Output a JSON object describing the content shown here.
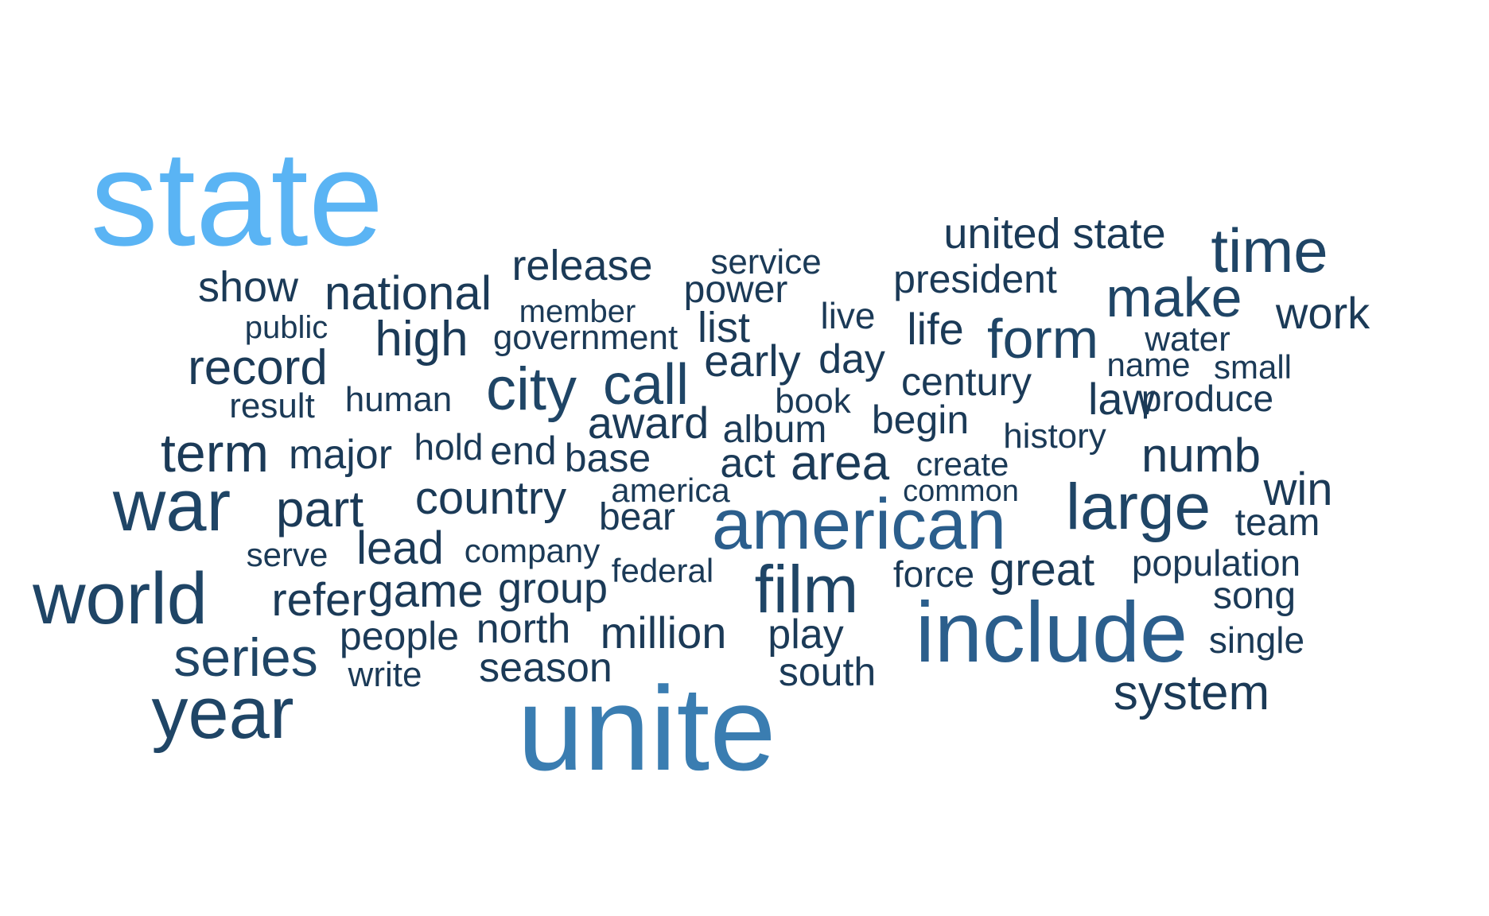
{
  "colors": {
    "tier1": "#5ab4f4",
    "tier2": "#3a7db1",
    "tier3": "#2b5e8c",
    "tier4": "#1f4566",
    "tier5": "#1b3a57"
  },
  "words": [
    {
      "text": "state",
      "color": "tier1"
    },
    {
      "text": "unite",
      "color": "tier2"
    },
    {
      "text": "american",
      "color": "tier3"
    },
    {
      "text": "include",
      "color": "tier3"
    },
    {
      "text": "year",
      "color": "tier4"
    },
    {
      "text": "world",
      "color": "tier4"
    },
    {
      "text": "war",
      "color": "tier4"
    },
    {
      "text": "time",
      "color": "tier4"
    },
    {
      "text": "large",
      "color": "tier4"
    },
    {
      "text": "film",
      "color": "tier4"
    },
    {
      "text": "make",
      "color": "tier4"
    },
    {
      "text": "form",
      "color": "tier4"
    },
    {
      "text": "city",
      "color": "tier4"
    },
    {
      "text": "call",
      "color": "tier4"
    },
    {
      "text": "series",
      "color": "tier4"
    },
    {
      "text": "united state",
      "color": "tier5"
    },
    {
      "text": "term",
      "color": "tier5"
    },
    {
      "text": "part",
      "color": "tier5"
    },
    {
      "text": "country",
      "color": "tier5"
    },
    {
      "text": "national",
      "color": "tier5"
    },
    {
      "text": "record",
      "color": "tier5"
    },
    {
      "text": "high",
      "color": "tier5"
    },
    {
      "text": "area",
      "color": "tier5"
    },
    {
      "text": "numb",
      "color": "tier5"
    },
    {
      "text": "system",
      "color": "tier5"
    },
    {
      "text": "refer",
      "color": "tier5"
    },
    {
      "text": "game",
      "color": "tier5"
    },
    {
      "text": "million",
      "color": "tier5"
    },
    {
      "text": "release",
      "color": "tier5"
    },
    {
      "text": "work",
      "color": "tier5"
    },
    {
      "text": "show",
      "color": "tier5"
    },
    {
      "text": "award",
      "color": "tier5"
    },
    {
      "text": "group",
      "color": "tier5"
    },
    {
      "text": "people",
      "color": "tier5"
    },
    {
      "text": "lead",
      "color": "tier5"
    },
    {
      "text": "early",
      "color": "tier5"
    },
    {
      "text": "day",
      "color": "tier5"
    },
    {
      "text": "great",
      "color": "tier5"
    },
    {
      "text": "win",
      "color": "tier5"
    },
    {
      "text": "major",
      "color": "tier5"
    },
    {
      "text": "north",
      "color": "tier5"
    },
    {
      "text": "season",
      "color": "tier5"
    },
    {
      "text": "president",
      "color": "tier5"
    },
    {
      "text": "century",
      "color": "tier5"
    },
    {
      "text": "begin",
      "color": "tier5"
    },
    {
      "text": "law",
      "color": "tier5"
    },
    {
      "text": "life",
      "color": "tier5"
    },
    {
      "text": "play",
      "color": "tier5"
    },
    {
      "text": "team",
      "color": "tier5"
    },
    {
      "text": "list",
      "color": "tier5"
    },
    {
      "text": "power",
      "color": "tier5"
    },
    {
      "text": "album",
      "color": "tier5"
    },
    {
      "text": "act",
      "color": "tier5"
    },
    {
      "text": "base",
      "color": "tier5"
    },
    {
      "text": "end",
      "color": "tier5"
    },
    {
      "text": "bear",
      "color": "tier5"
    },
    {
      "text": "south",
      "color": "tier5"
    },
    {
      "text": "song",
      "color": "tier5"
    },
    {
      "text": "population",
      "color": "tier5"
    },
    {
      "text": "produce",
      "color": "tier5"
    },
    {
      "text": "single",
      "color": "tier5"
    },
    {
      "text": "human",
      "color": "tier5"
    },
    {
      "text": "government",
      "color": "tier5"
    },
    {
      "text": "company",
      "color": "tier5"
    },
    {
      "text": "force",
      "color": "tier5"
    },
    {
      "text": "book",
      "color": "tier5"
    },
    {
      "text": "live",
      "color": "tier5"
    },
    {
      "text": "service",
      "color": "tier5"
    },
    {
      "text": "hold",
      "color": "tier5"
    },
    {
      "text": "history",
      "color": "tier5"
    },
    {
      "text": "water",
      "color": "tier5"
    },
    {
      "text": "name",
      "color": "tier5"
    },
    {
      "text": "small",
      "color": "tier5"
    },
    {
      "text": "create",
      "color": "tier5"
    },
    {
      "text": "america",
      "color": "tier5"
    },
    {
      "text": "federal",
      "color": "tier5"
    },
    {
      "text": "result",
      "color": "tier5"
    },
    {
      "text": "serve",
      "color": "tier5"
    },
    {
      "text": "write",
      "color": "tier5"
    },
    {
      "text": "public",
      "color": "tier5"
    },
    {
      "text": "member",
      "color": "tier5"
    },
    {
      "text": "common",
      "color": "tier5"
    }
  ]
}
